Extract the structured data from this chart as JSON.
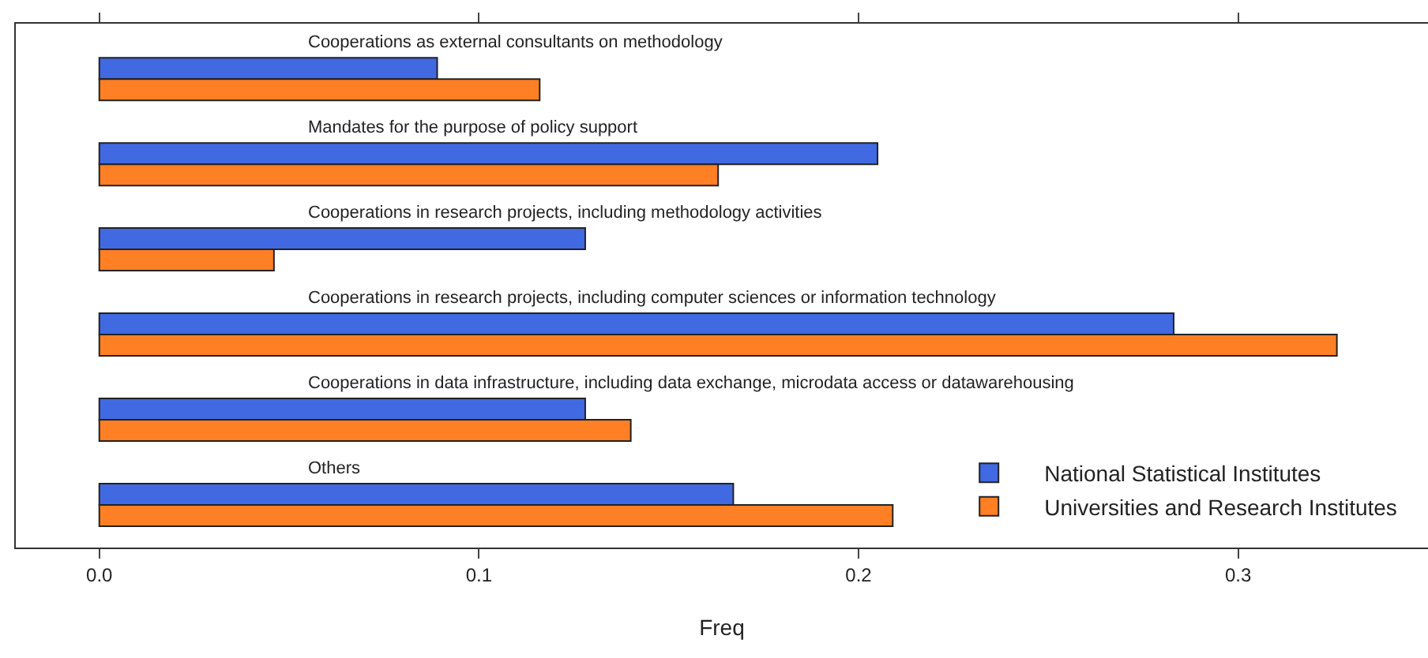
{
  "chart_data": {
    "type": "bar",
    "orientation": "horizontal",
    "xlabel": "Freq",
    "categories": [
      "Cooperations as external consultants on methodology",
      "Mandates for the purpose of policy support",
      "Cooperations in research projects, including methodology activities",
      "Cooperations in research projects, including computer sciences or information technology",
      "Cooperations in data infrastructure, including data exchange, microdata access or datawarehousing",
      "Others"
    ],
    "series": [
      {
        "name": "National Statistical Institutes",
        "color": "#4169e1",
        "values": [
          0.089,
          0.205,
          0.128,
          0.283,
          0.128,
          0.167
        ]
      },
      {
        "name": "Universities and Research Institutes",
        "color": "#ff7f24",
        "values": [
          0.116,
          0.163,
          0.046,
          0.326,
          0.14,
          0.209
        ]
      }
    ],
    "xlim": [
      -0.022,
      0.35
    ],
    "xticks": [
      {
        "value": 0,
        "label": "0.0"
      },
      0.1,
      0.2,
      0.3
    ],
    "tick_labels": "x",
    "grid": false,
    "legend": "bottom right"
  }
}
